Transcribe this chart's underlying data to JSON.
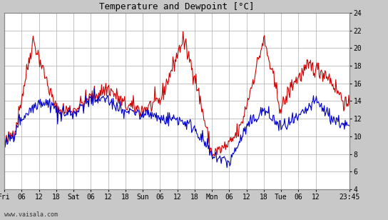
{
  "title": "Temperature and Dewpoint [°C]",
  "ylim": [
    4,
    24
  ],
  "yticks": [
    4,
    6,
    8,
    10,
    12,
    14,
    16,
    18,
    20,
    22,
    24
  ],
  "xtick_pos": [
    0,
    6,
    12,
    18,
    24,
    30,
    36,
    42,
    48,
    54,
    60,
    66,
    72,
    78,
    84,
    90,
    96,
    102,
    108,
    119.75
  ],
  "xtick_labels": [
    "Fri",
    "06",
    "12",
    "18",
    "Sat",
    "06",
    "12",
    "18",
    "Sun",
    "06",
    "12",
    "18",
    "Mon",
    "06",
    "12",
    "18",
    "Tue",
    "06",
    "12",
    "23:45"
  ],
  "temp_color": "#cc0000",
  "dewpoint_color": "#0000cc",
  "bg_color": "#c8c8c8",
  "plot_bg_color": "#ffffff",
  "grid_color": "#aaaaaa",
  "watermark": "www.vaisala.com",
  "figsize": [
    5.44,
    3.08
  ],
  "dpi": 100,
  "xlim": [
    0,
    119.75
  ],
  "title_fontsize": 9,
  "tick_fontsize": 7,
  "linewidth": 0.8
}
